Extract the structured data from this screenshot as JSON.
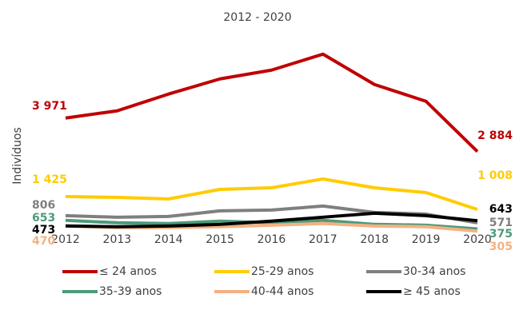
{
  "chart_data": {
    "type": "line",
    "title": "2012 - 2020",
    "ylabel": "Indivíduos",
    "categories": [
      "2012",
      "2013",
      "2014",
      "2015",
      "2016",
      "2017",
      "2018",
      "2019",
      "2020"
    ],
    "series": [
      {
        "name": "≤ 24 anos",
        "color": "#c00000",
        "values": [
          3971,
          4204,
          4748,
          5240,
          5525,
          6043,
          5059,
          4515,
          2884
        ],
        "value_labels": [
          "3 971",
          null,
          null,
          null,
          null,
          null,
          null,
          null,
          "2 884"
        ]
      },
      {
        "name": "25-29 anos",
        "color": "#ffcc00",
        "values": [
          1425,
          1399,
          1347,
          1658,
          1710,
          1995,
          1710,
          1554,
          1008
        ],
        "value_labels": [
          "1 425",
          null,
          null,
          null,
          null,
          null,
          null,
          null,
          "1 008"
        ]
      },
      {
        "name": "30-34 anos",
        "color": "#7f7f7f",
        "values": [
          806,
          754,
          780,
          961,
          987,
          1117,
          909,
          857,
          571
        ]
      },
      {
        "name": "35-39 anos",
        "color": "#4e9a7a",
        "values": [
          653,
          575,
          549,
          627,
          575,
          653,
          523,
          497,
          375
        ]
      },
      {
        "name": "40-44 anos",
        "color": "#f4b183",
        "values": [
          470,
          420,
          420,
          446,
          497,
          549,
          471,
          446,
          305
        ]
      },
      {
        "name": "≥ 45 anos",
        "color": "#000000",
        "values": [
          473,
          446,
          471,
          523,
          627,
          756,
          884,
          806,
          643
        ]
      }
    ]
  }
}
